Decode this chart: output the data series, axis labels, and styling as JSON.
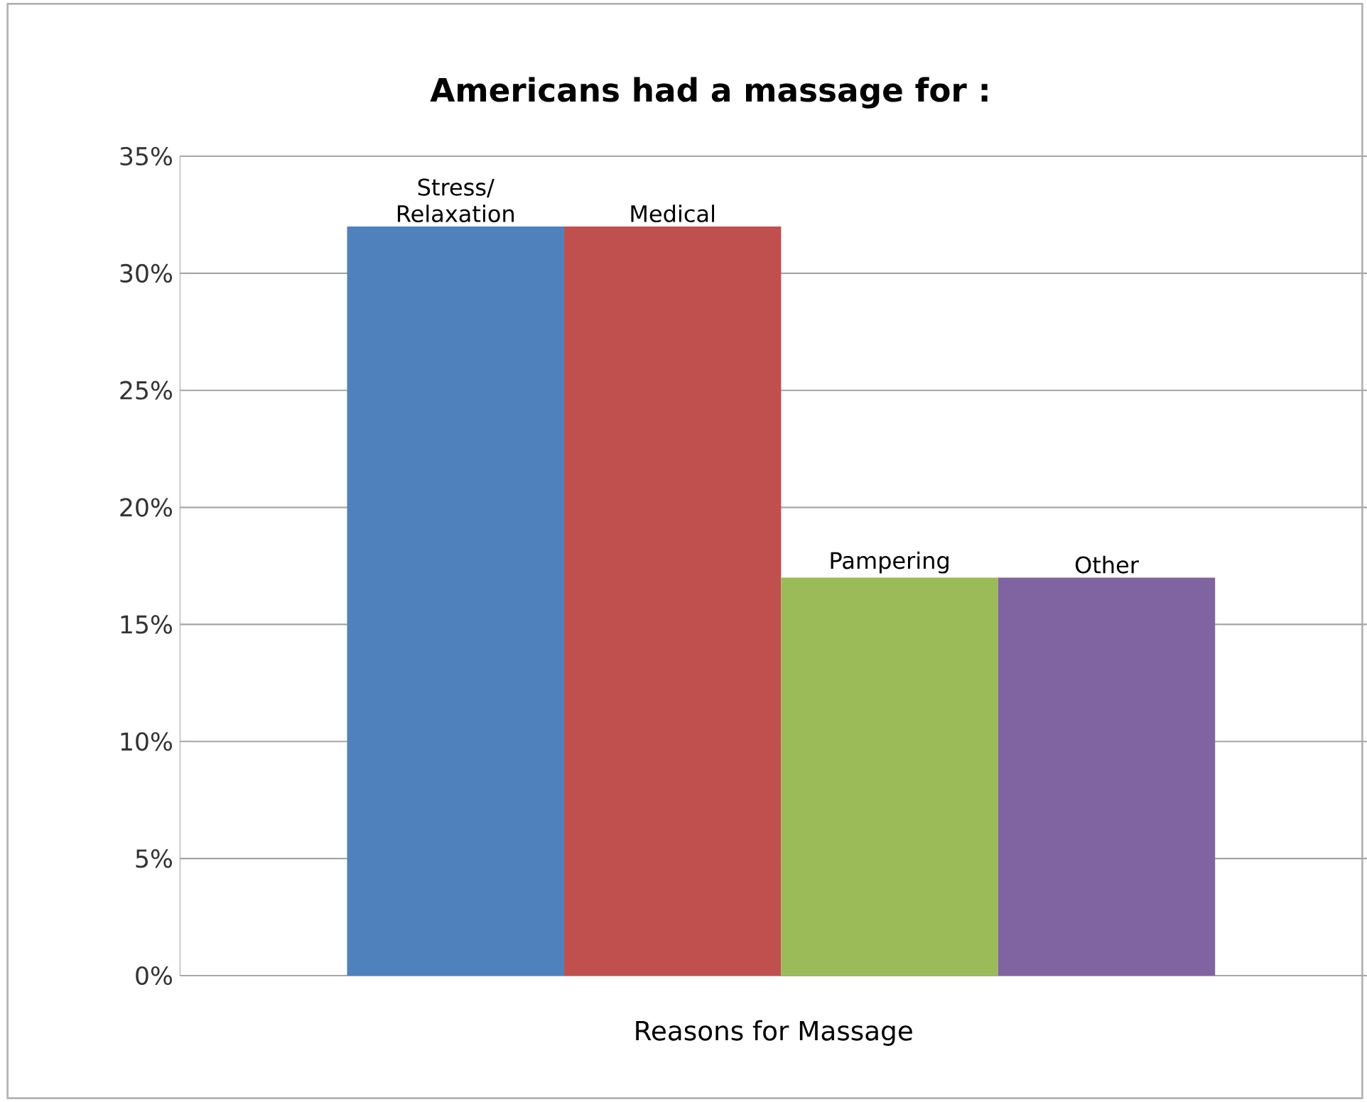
{
  "chart_data": {
    "type": "bar",
    "title": "Americans had a massage for :",
    "xlabel": "Reasons for Massage",
    "categories": [
      "Stress/ Relaxation",
      "Medical",
      "Pampering",
      "Other"
    ],
    "values": [
      32,
      32,
      17,
      17
    ],
    "colors": [
      "#4f81bd",
      "#c0504d",
      "#9bbb59",
      "#8064a2"
    ],
    "ylim": [
      0,
      35
    ],
    "yticks": [
      {
        "value": 0,
        "label": "0%"
      },
      {
        "value": 5,
        "label": "5%"
      },
      {
        "value": 10,
        "label": "10%"
      },
      {
        "value": 15,
        "label": "15%"
      },
      {
        "value": 20,
        "label": "20%"
      },
      {
        "value": 25,
        "label": "25%"
      },
      {
        "value": 30,
        "label": "30%"
      },
      {
        "value": 35,
        "label": "35%"
      }
    ],
    "grid": "y"
  }
}
